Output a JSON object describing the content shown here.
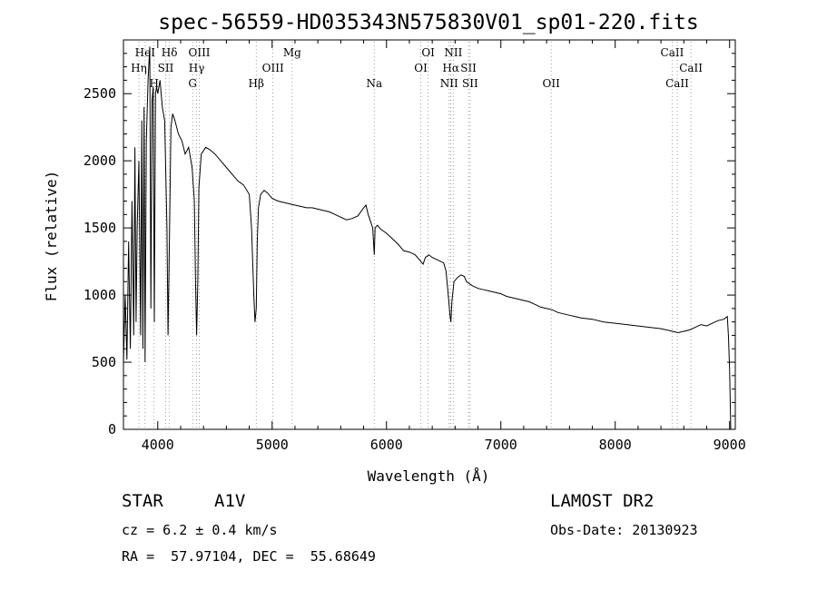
{
  "chart_data": {
    "type": "line",
    "title": "spec-56559-HD035343N575830V01_sp01-220.fits",
    "xlabel": "Wavelength (Å)",
    "ylabel": "Flux (relative)",
    "xlim": [
      3700,
      9050
    ],
    "ylim": [
      0,
      2900
    ],
    "xticks": [
      4000,
      5000,
      6000,
      7000,
      8000,
      9000
    ],
    "yticks": [
      0,
      500,
      1000,
      1500,
      2000,
      2500
    ],
    "grid": false,
    "series": [
      {
        "x": [
          3700,
          3715,
          3730,
          3745,
          3760,
          3775,
          3790,
          3800,
          3810,
          3820,
          3835,
          3850,
          3860,
          3870,
          3880,
          3889,
          3900,
          3915,
          3930,
          3940,
          3950,
          3960,
          3970,
          3980,
          3990,
          4000,
          4020,
          4040,
          4060,
          4080,
          4090,
          4102,
          4115,
          4130,
          4150,
          4180,
          4210,
          4240,
          4270,
          4300,
          4320,
          4330,
          4340,
          4350,
          4360,
          4380,
          4420,
          4460,
          4500,
          4550,
          4600,
          4650,
          4700,
          4750,
          4800,
          4820,
          4840,
          4850,
          4861,
          4870,
          4880,
          4900,
          4930,
          4960,
          5000,
          5050,
          5100,
          5150,
          5200,
          5250,
          5300,
          5350,
          5400,
          5450,
          5500,
          5550,
          5600,
          5650,
          5700,
          5750,
          5800,
          5820,
          5840,
          5860,
          5880,
          5893,
          5900,
          5920,
          5950,
          6000,
          6050,
          6100,
          6150,
          6200,
          6250,
          6300,
          6320,
          6340,
          6370,
          6400,
          6450,
          6500,
          6520,
          6540,
          6555,
          6563,
          6572,
          6590,
          6620,
          6650,
          6680,
          6700,
          6750,
          6800,
          6850,
          6900,
          6950,
          7000,
          7050,
          7100,
          7150,
          7200,
          7250,
          7300,
          7350,
          7400,
          7450,
          7500,
          7600,
          7700,
          7800,
          7900,
          8000,
          8100,
          8200,
          8300,
          8400,
          8450,
          8500,
          8550,
          8600,
          8650,
          8700,
          8750,
          8800,
          8850,
          8900,
          8950,
          8980,
          8990,
          9000,
          9010
        ],
        "y": [
          500,
          1000,
          520,
          1400,
          600,
          1700,
          700,
          2100,
          800,
          1500,
          2000,
          700,
          2300,
          600,
          2400,
          500,
          2150,
          2600,
          2850,
          900,
          2450,
          2550,
          800,
          2500,
          2550,
          2500,
          2600,
          2400,
          2300,
          1500,
          700,
          1400,
          2250,
          2350,
          2300,
          2200,
          2150,
          2050,
          2100,
          1950,
          1700,
          1100,
          700,
          1100,
          1800,
          2050,
          2100,
          2080,
          2050,
          2000,
          1950,
          1900,
          1850,
          1820,
          1750,
          1500,
          1000,
          800,
          900,
          1400,
          1650,
          1750,
          1780,
          1760,
          1720,
          1700,
          1690,
          1680,
          1670,
          1660,
          1650,
          1650,
          1640,
          1630,
          1620,
          1600,
          1580,
          1560,
          1570,
          1590,
          1650,
          1670,
          1600,
          1550,
          1500,
          1300,
          1500,
          1520,
          1490,
          1460,
          1420,
          1380,
          1330,
          1320,
          1300,
          1250,
          1230,
          1280,
          1300,
          1280,
          1260,
          1240,
          1180,
          1000,
          850,
          800,
          950,
          1100,
          1130,
          1150,
          1140,
          1100,
          1070,
          1050,
          1040,
          1030,
          1020,
          1010,
          990,
          980,
          970,
          960,
          950,
          930,
          910,
          900,
          890,
          870,
          850,
          830,
          820,
          800,
          790,
          780,
          770,
          760,
          750,
          740,
          730,
          720,
          730,
          740,
          760,
          780,
          770,
          790,
          810,
          820,
          840,
          700,
          450,
          0
        ]
      }
    ],
    "line_markers": [
      {
        "label": "HeI",
        "wave": 3889,
        "row": 0
      },
      {
        "label": "Hη",
        "wave": 3835,
        "row": 1
      },
      {
        "label": "H",
        "wave": 3968,
        "row": 2
      },
      {
        "label": "Hδ",
        "wave": 4102,
        "row": 0
      },
      {
        "label": "SII",
        "wave": 4069,
        "row": 1
      },
      {
        "label": "OIII",
        "wave": 4363,
        "row": 0
      },
      {
        "label": "Hγ",
        "wave": 4340,
        "row": 1
      },
      {
        "label": "G",
        "wave": 4305,
        "row": 2
      },
      {
        "label": "Mg",
        "wave": 5175,
        "row": 0
      },
      {
        "label": "OIII",
        "wave": 5007,
        "row": 1
      },
      {
        "label": "Hβ",
        "wave": 4861,
        "row": 2
      },
      {
        "label": "Na",
        "wave": 5893,
        "row": 2
      },
      {
        "label": "OI",
        "wave": 6364,
        "row": 0
      },
      {
        "label": "OI",
        "wave": 6300,
        "row": 1
      },
      {
        "label": "NII",
        "wave": 6584,
        "row": 0
      },
      {
        "label": "Hα",
        "wave": 6563,
        "row": 1
      },
      {
        "label": "SII",
        "wave": 6717,
        "row": 1
      },
      {
        "label": "NII",
        "wave": 6548,
        "row": 2
      },
      {
        "label": "SII",
        "wave": 6731,
        "row": 2
      },
      {
        "label": "OII",
        "wave": 7440,
        "row": 2
      },
      {
        "label": "CaII",
        "wave": 8498,
        "row": 0
      },
      {
        "label": "CaII",
        "wave": 8662,
        "row": 1
      },
      {
        "label": "CaII",
        "wave": 8542,
        "row": 2
      }
    ]
  },
  "info": {
    "object_class": "STAR",
    "subclass": "A1V",
    "survey": "LAMOST DR2",
    "cz": "cz = 6.2 ± 0.4 km/s",
    "obs_date": "Obs-Date: 20130923",
    "coords": "RA =  57.97104, DEC =  55.68649"
  }
}
